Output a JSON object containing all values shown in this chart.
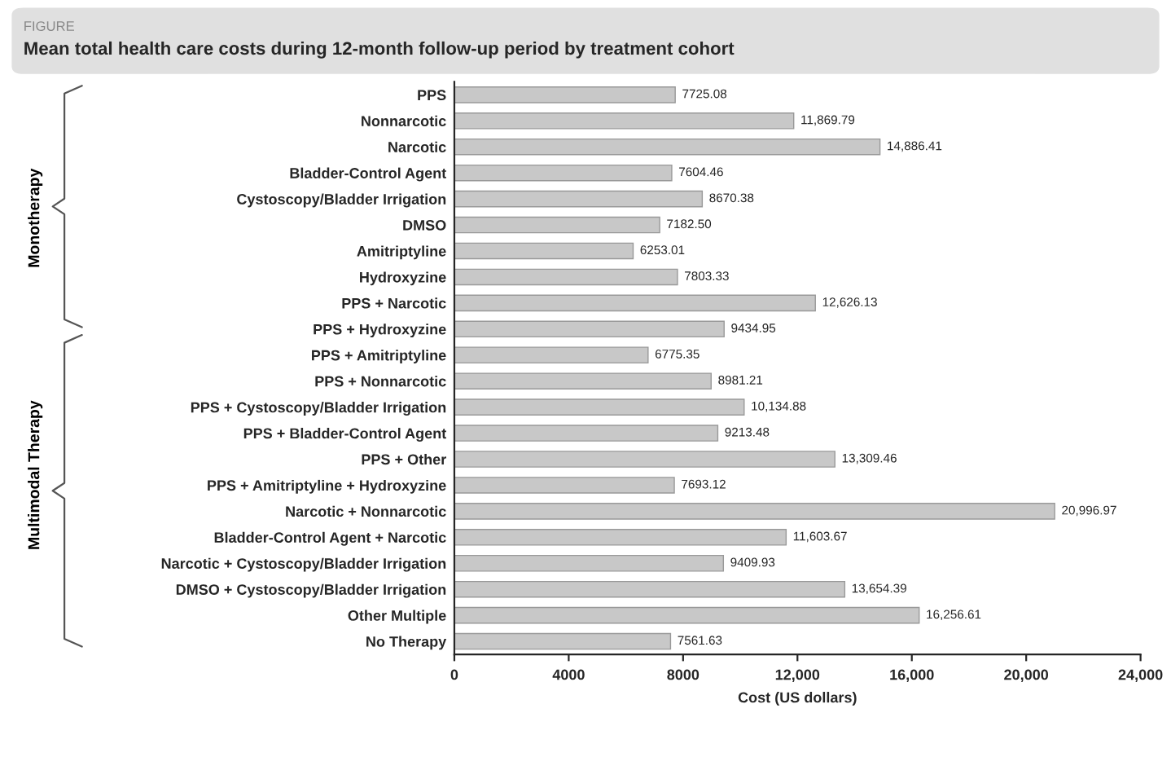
{
  "chart_data": {
    "type": "bar",
    "orientation": "horizontal",
    "title": "Mean total health care costs during 12-month follow-up period by treatment cohort",
    "xlabel": "Cost (US dollars)",
    "annotations": [
      "FIGURE",
      "Monotherapy",
      "Multimodal Therapy"
    ],
    "categories": [
      "PPS",
      "Nonnarcotic",
      "Narcotic",
      "Bladder-Control Agent",
      "Cystoscopy/Bladder Irrigation",
      "DMSO",
      "Amitriptyline",
      "Hydroxyzine",
      "PPS + Narcotic",
      "PPS + Hydroxyzine",
      "PPS + Amitriptyline",
      "PPS + Nonnarcotic",
      "PPS + Cystoscopy/Bladder Irrigation",
      "PPS + Bladder-Control Agent",
      "PPS + Other",
      "PPS + Amitriptyline + Hydroxyzine",
      "Narcotic + Nonnarcotic",
      "Bladder-Control Agent + Narcotic",
      "Narcotic + Cystoscopy/Bladder Irrigation",
      "DMSO + Cystoscopy/Bladder Irrigation",
      "Other Multiple",
      "No Therapy"
    ],
    "values": [
      7725.08,
      11869.79,
      14886.41,
      7604.46,
      8670.38,
      7182.5,
      6253.01,
      7803.33,
      12626.13,
      9434.95,
      6775.35,
      8981.21,
      10134.88,
      9213.48,
      13309.46,
      7693.12,
      20996.97,
      11603.67,
      9409.93,
      13654.39,
      16256.61,
      7561.63
    ],
    "value_labels": [
      "7725.08",
      "11,869.79",
      "14,886.41",
      "7604.46",
      "8670.38",
      "7182.50",
      "6253.01",
      "7803.33",
      "12,626.13",
      "9434.95",
      "6775.35",
      "8981.21",
      "10,134.88",
      "9213.48",
      "13,309.46",
      "7693.12",
      "20,996.97",
      "11,603.67",
      "9409.93",
      "13,654.39",
      "16,256.61",
      "7561.63"
    ],
    "color": "#c8c8c8",
    "xlim": [
      0,
      24000
    ],
    "xticks": [
      0,
      4000,
      8000,
      {
        "value": 12000,
        "label": "12,000"
      },
      {
        "value": 16000,
        "label": "16,000"
      },
      {
        "value": 20000,
        "label": "20,000"
      },
      {
        "value": 24000,
        "label": "24,000"
      }
    ],
    "grid": false,
    "legend": false
  }
}
